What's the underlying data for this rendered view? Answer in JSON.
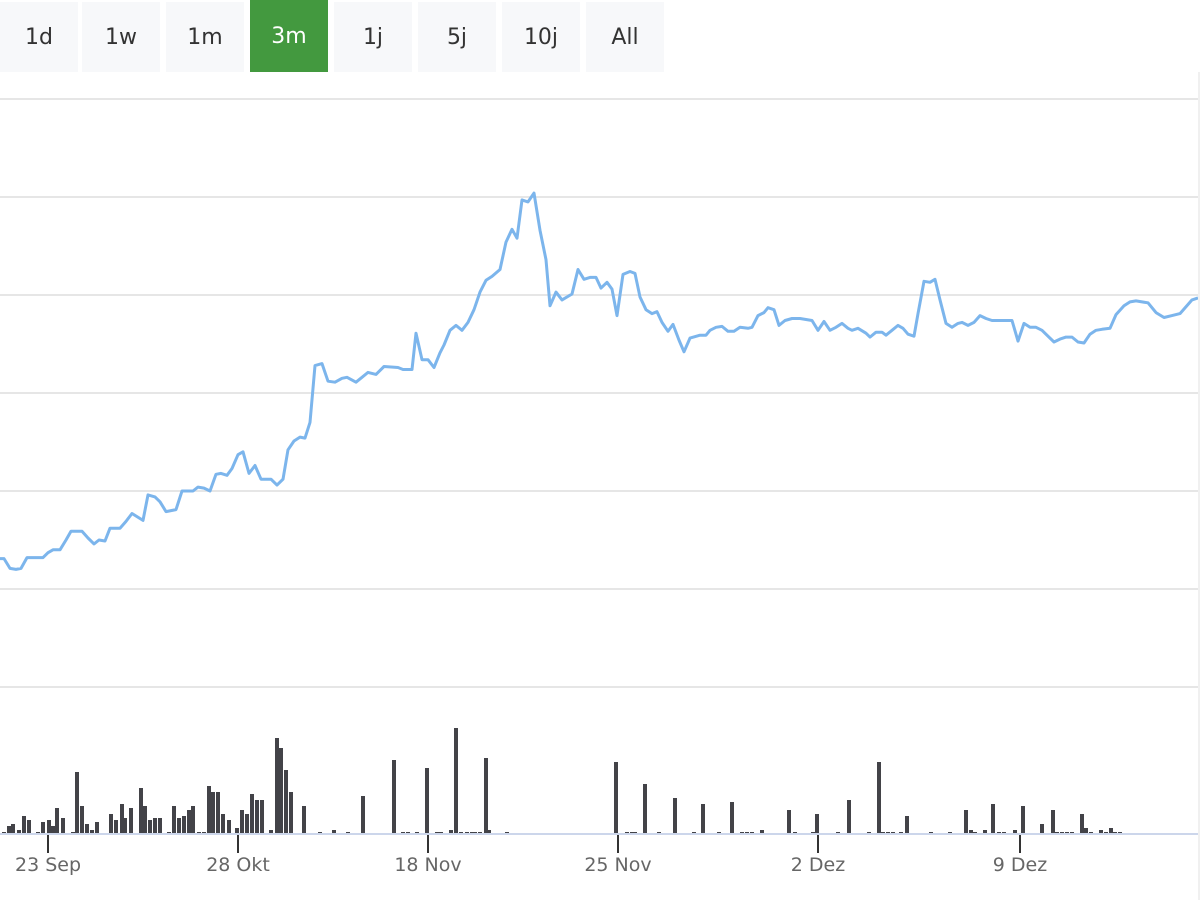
{
  "range_selector": {
    "buttons": [
      "1d",
      "1w",
      "1m",
      "3m",
      "1j",
      "5j",
      "10j",
      "All"
    ],
    "active": "3m",
    "active_color": "#43993f"
  },
  "chart_data": [
    {
      "type": "line",
      "name": "price",
      "color": "#7cb5ec",
      "ylim": [
        0,
        600
      ],
      "grid": true,
      "xlim": [
        0,
        120
      ],
      "points": [
        [
          0,
          131
        ],
        [
          0.4,
          131
        ],
        [
          1,
          121
        ],
        [
          1.6,
          120
        ],
        [
          2.1,
          121
        ],
        [
          2.7,
          132
        ],
        [
          3.3,
          132
        ],
        [
          4.3,
          132
        ],
        [
          4.8,
          137
        ],
        [
          5.3,
          140
        ],
        [
          6,
          140
        ],
        [
          6.6,
          150
        ],
        [
          7.1,
          159
        ],
        [
          8.2,
          159
        ],
        [
          8.8,
          152
        ],
        [
          9.4,
          146
        ],
        [
          9.9,
          150
        ],
        [
          10.5,
          149
        ],
        [
          11,
          162
        ],
        [
          12,
          162
        ],
        [
          12.6,
          169
        ],
        [
          13.2,
          177
        ],
        [
          14.3,
          170
        ],
        [
          14.8,
          196
        ],
        [
          15.5,
          194
        ],
        [
          16,
          189
        ],
        [
          16.6,
          179
        ],
        [
          17.6,
          181
        ],
        [
          18.2,
          200
        ],
        [
          19.3,
          200
        ],
        [
          19.8,
          204
        ],
        [
          20.4,
          203
        ],
        [
          21,
          200
        ],
        [
          21.6,
          217
        ],
        [
          22.1,
          218
        ],
        [
          22.7,
          216
        ],
        [
          23.2,
          223
        ],
        [
          23.8,
          237
        ],
        [
          24.3,
          240
        ],
        [
          24.9,
          218
        ],
        [
          25.5,
          226
        ],
        [
          26.1,
          212
        ],
        [
          27.1,
          212
        ],
        [
          27.7,
          206
        ],
        [
          28.3,
          212
        ],
        [
          28.8,
          242
        ],
        [
          29.4,
          251
        ],
        [
          30,
          255
        ],
        [
          30.5,
          254
        ],
        [
          31,
          270
        ],
        [
          31.5,
          328
        ],
        [
          32.2,
          330
        ],
        [
          32.8,
          312
        ],
        [
          33.5,
          311
        ],
        [
          34.2,
          315
        ],
        [
          34.7,
          316
        ],
        [
          35.6,
          311
        ],
        [
          36.2,
          316
        ],
        [
          36.8,
          321
        ],
        [
          37.6,
          319
        ],
        [
          38.4,
          327
        ],
        [
          39.8,
          326
        ],
        [
          40.3,
          324
        ],
        [
          41.2,
          324
        ],
        [
          41.6,
          361
        ],
        [
          42.2,
          334
        ],
        [
          42.8,
          334
        ],
        [
          43.4,
          326
        ],
        [
          44,
          341
        ],
        [
          44.4,
          349
        ],
        [
          45,
          364
        ],
        [
          45.6,
          369
        ],
        [
          46.2,
          364
        ],
        [
          46.8,
          372
        ],
        [
          47.4,
          385
        ],
        [
          48,
          403
        ],
        [
          48.6,
          415
        ],
        [
          49.2,
          419
        ],
        [
          50,
          426
        ],
        [
          50.6,
          454
        ],
        [
          51.2,
          467
        ],
        [
          51.7,
          458
        ],
        [
          52.2,
          497
        ],
        [
          52.8,
          495
        ],
        [
          53.4,
          504
        ],
        [
          54,
          466
        ],
        [
          54.6,
          436
        ],
        [
          55,
          389
        ],
        [
          55.6,
          403
        ],
        [
          56.2,
          395
        ],
        [
          57.2,
          401
        ],
        [
          57.8,
          426
        ],
        [
          58.4,
          416
        ],
        [
          59,
          418
        ],
        [
          59.6,
          418
        ],
        [
          60.1,
          407
        ],
        [
          60.7,
          413
        ],
        [
          61.2,
          406
        ],
        [
          61.7,
          379
        ],
        [
          62.3,
          421
        ],
        [
          63,
          424
        ],
        [
          63.5,
          422
        ],
        [
          64,
          398
        ],
        [
          64.6,
          385
        ],
        [
          65.2,
          381
        ],
        [
          65.7,
          383
        ],
        [
          66.2,
          372
        ],
        [
          66.8,
          363
        ],
        [
          67.3,
          370
        ],
        [
          67.9,
          354
        ],
        [
          68.4,
          342
        ],
        [
          69,
          356
        ],
        [
          70,
          359
        ],
        [
          70.6,
          359
        ],
        [
          71,
          364
        ],
        [
          71.6,
          367
        ],
        [
          72.2,
          368
        ],
        [
          72.8,
          363
        ],
        [
          73.4,
          363
        ],
        [
          74,
          367
        ],
        [
          74.8,
          366
        ],
        [
          75.2,
          367
        ],
        [
          75.8,
          379
        ],
        [
          76.4,
          382
        ],
        [
          76.8,
          387
        ],
        [
          77.4,
          385
        ],
        [
          77.9,
          369
        ],
        [
          78.5,
          374
        ],
        [
          79.2,
          376
        ],
        [
          80,
          376
        ],
        [
          81.2,
          374
        ],
        [
          81.8,
          364
        ],
        [
          82.4,
          373
        ],
        [
          83,
          364
        ],
        [
          83.6,
          367
        ],
        [
          84.2,
          371
        ],
        [
          84.8,
          366
        ],
        [
          85.2,
          364
        ],
        [
          85.8,
          366
        ],
        [
          86.6,
          361
        ],
        [
          87,
          357
        ],
        [
          87.6,
          362
        ],
        [
          88.2,
          362
        ],
        [
          88.6,
          359
        ],
        [
          89.2,
          364
        ],
        [
          89.8,
          369
        ],
        [
          90.3,
          366
        ],
        [
          90.8,
          360
        ],
        [
          91.4,
          358
        ],
        [
          91.8,
          381
        ],
        [
          92.4,
          414
        ],
        [
          93,
          413
        ],
        [
          93.5,
          416
        ],
        [
          94,
          395
        ],
        [
          94.6,
          371
        ],
        [
          95.2,
          367
        ],
        [
          95.8,
          371
        ],
        [
          96.2,
          372
        ],
        [
          96.8,
          369
        ],
        [
          97.4,
          372
        ],
        [
          98,
          379
        ],
        [
          98.6,
          376
        ],
        [
          99.2,
          374
        ],
        [
          100,
          374
        ],
        [
          101.2,
          374
        ],
        [
          101.8,
          353
        ],
        [
          102.4,
          371
        ],
        [
          103,
          367
        ],
        [
          103.6,
          367
        ],
        [
          104.2,
          364
        ],
        [
          104.8,
          358
        ],
        [
          105.4,
          352
        ],
        [
          106,
          355
        ],
        [
          106.6,
          357
        ],
        [
          107.2,
          357
        ],
        [
          107.8,
          352
        ],
        [
          108.4,
          351
        ],
        [
          109,
          360
        ],
        [
          109.6,
          364
        ],
        [
          110.2,
          365
        ],
        [
          111,
          366
        ],
        [
          111.6,
          380
        ],
        [
          112.4,
          389
        ],
        [
          113,
          393
        ],
        [
          113.6,
          394
        ],
        [
          114.2,
          393
        ],
        [
          114.8,
          392
        ],
        [
          115.6,
          382
        ],
        [
          116.4,
          377
        ],
        [
          117.2,
          379
        ],
        [
          118,
          381
        ],
        [
          119.2,
          395
        ],
        [
          119.8,
          397
        ]
      ]
    },
    {
      "type": "bar",
      "name": "volume",
      "color": "#434348",
      "ylim": [
        0,
        134
      ],
      "x_ticks": [
        {
          "x": 4.8,
          "label": "23 Sep"
        },
        {
          "x": 23.8,
          "label": "28 Okt"
        },
        {
          "x": 42.8,
          "label": "18 Nov"
        },
        {
          "x": 61.8,
          "label": "25 Nov"
        },
        {
          "x": 81.8,
          "label": "2 Dez"
        },
        {
          "x": 102,
          "label": "9 Dez"
        }
      ],
      "bars": [
        [
          0.4,
          2
        ],
        [
          0.9,
          8
        ],
        [
          1.3,
          10
        ],
        [
          1.9,
          4
        ],
        [
          2.4,
          18
        ],
        [
          2.9,
          14
        ],
        [
          3.8,
          2
        ],
        [
          4.3,
          12
        ],
        [
          4.9,
          14
        ],
        [
          5.3,
          8
        ],
        [
          5.7,
          26
        ],
        [
          6.3,
          16
        ],
        [
          7.3,
          2
        ],
        [
          7.7,
          62
        ],
        [
          8.2,
          28
        ],
        [
          8.7,
          10
        ],
        [
          9.2,
          4
        ],
        [
          9.7,
          12
        ],
        [
          11.1,
          20
        ],
        [
          11.6,
          14
        ],
        [
          12.2,
          30
        ],
        [
          12.5,
          16
        ],
        [
          13.1,
          26
        ],
        [
          14.1,
          46
        ],
        [
          14.5,
          28
        ],
        [
          15,
          14
        ],
        [
          15.5,
          16
        ],
        [
          16,
          16
        ],
        [
          16.9,
          2
        ],
        [
          17.4,
          28
        ],
        [
          17.9,
          16
        ],
        [
          18.4,
          18
        ],
        [
          18.9,
          24
        ],
        [
          19.3,
          28
        ],
        [
          19.9,
          2
        ],
        [
          20.4,
          2
        ],
        [
          20.9,
          48
        ],
        [
          21.3,
          42
        ],
        [
          21.8,
          42
        ],
        [
          22.3,
          20
        ],
        [
          22.9,
          14
        ],
        [
          23.7,
          6
        ],
        [
          24.2,
          24
        ],
        [
          24.7,
          20
        ],
        [
          25.2,
          40
        ],
        [
          25.7,
          34
        ],
        [
          26.2,
          34
        ],
        [
          27.1,
          4
        ],
        [
          27.7,
          96
        ],
        [
          28.1,
          86
        ],
        [
          28.6,
          64
        ],
        [
          29.1,
          42
        ],
        [
          30.4,
          28
        ],
        [
          32,
          2
        ],
        [
          33.4,
          4
        ],
        [
          34.8,
          2
        ],
        [
          36.3,
          38
        ],
        [
          39.4,
          74
        ],
        [
          40.3,
          2
        ],
        [
          40.8,
          2
        ],
        [
          41.7,
          2
        ],
        [
          42.7,
          66
        ],
        [
          43.7,
          2
        ],
        [
          44.1,
          2
        ],
        [
          45.1,
          4
        ],
        [
          45.6,
          106
        ],
        [
          46.1,
          2
        ],
        [
          46.7,
          2
        ],
        [
          47.2,
          2
        ],
        [
          47.5,
          2
        ],
        [
          48,
          2
        ],
        [
          48.6,
          76
        ],
        [
          48.9,
          4
        ],
        [
          50.7,
          2
        ],
        [
          61.6,
          72
        ],
        [
          62.7,
          2
        ],
        [
          63.2,
          2
        ],
        [
          63.5,
          2
        ],
        [
          64.5,
          50
        ],
        [
          65.9,
          2
        ],
        [
          67.5,
          36
        ],
        [
          69.4,
          2
        ],
        [
          70.3,
          30
        ],
        [
          71.9,
          2
        ],
        [
          73.2,
          32
        ],
        [
          74.2,
          2
        ],
        [
          74.7,
          2
        ],
        [
          75.2,
          2
        ],
        [
          76.2,
          4
        ],
        [
          78.9,
          24
        ],
        [
          79.5,
          2
        ],
        [
          81.3,
          2
        ],
        [
          81.7,
          20
        ],
        [
          83.8,
          2
        ],
        [
          84.9,
          34
        ],
        [
          86.9,
          2
        ],
        [
          87.9,
          72
        ],
        [
          88.3,
          2
        ],
        [
          88.8,
          2
        ],
        [
          89.3,
          2
        ],
        [
          90.1,
          2
        ],
        [
          90.7,
          18
        ],
        [
          93.1,
          2
        ],
        [
          95,
          2
        ],
        [
          96.6,
          24
        ],
        [
          97.1,
          4
        ],
        [
          97.5,
          2
        ],
        [
          98.5,
          4
        ],
        [
          99.3,
          30
        ],
        [
          99.9,
          2
        ],
        [
          100.4,
          2
        ],
        [
          101.5,
          4
        ],
        [
          102.3,
          28
        ],
        [
          104.2,
          10
        ],
        [
          105.3,
          24
        ],
        [
          105.7,
          2
        ],
        [
          106.2,
          2
        ],
        [
          106.7,
          2
        ],
        [
          107.2,
          2
        ],
        [
          108.2,
          20
        ],
        [
          108.6,
          6
        ],
        [
          109.1,
          2
        ],
        [
          110.1,
          4
        ],
        [
          110.6,
          2
        ],
        [
          111.1,
          6
        ],
        [
          111.5,
          2
        ],
        [
          112,
          2
        ]
      ]
    }
  ]
}
